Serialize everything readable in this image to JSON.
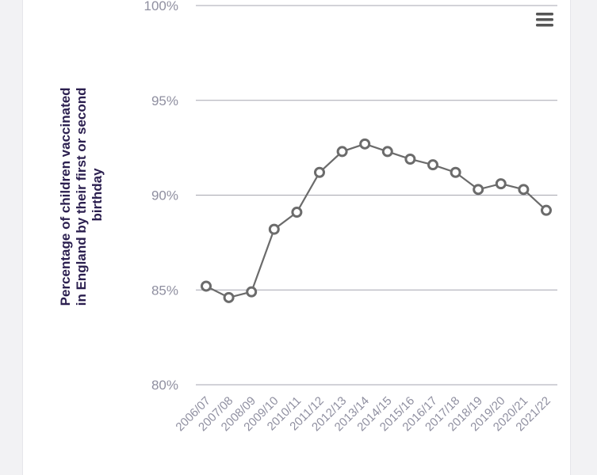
{
  "chart_data": {
    "type": "line",
    "title": "",
    "ylabel": "Percentage of children vaccinated in England by their first or second birthday",
    "ylabel_lines": [
      "Percentage of children vaccinated",
      "in England by their first or second",
      "birthday"
    ],
    "xlabel": "",
    "categories": [
      "2006/07",
      "2007/08",
      "2008/09",
      "2009/10",
      "2010/11",
      "2011/12",
      "2012/13",
      "2013/14",
      "2014/15",
      "2015/16",
      "2016/17",
      "2017/18",
      "2018/19",
      "2019/20",
      "2020/21",
      "2021/22"
    ],
    "series": [
      {
        "values": [
          85.2,
          84.6,
          84.9,
          88.2,
          89.1,
          91.2,
          92.3,
          92.7,
          92.3,
          91.9,
          91.6,
          91.2,
          90.3,
          90.6,
          90.3,
          89.2
        ]
      }
    ],
    "yticks": [
      "80%",
      "85%",
      "90%",
      "95%",
      "100%"
    ],
    "ytick_values": [
      80,
      85,
      90,
      95,
      100
    ],
    "ylim": [
      80,
      100
    ],
    "grid": true,
    "legend": "none",
    "colors": {
      "line": "#6b6b6b",
      "marker_fill": "#ffffff",
      "grid": "#a6a6b0",
      "tick_label": "#8f8fa0",
      "ylabel": "#2b1f4f",
      "menu_icon": "#555555"
    }
  },
  "toolbar": {
    "menu_icon": "hamburger-menu-icon"
  }
}
